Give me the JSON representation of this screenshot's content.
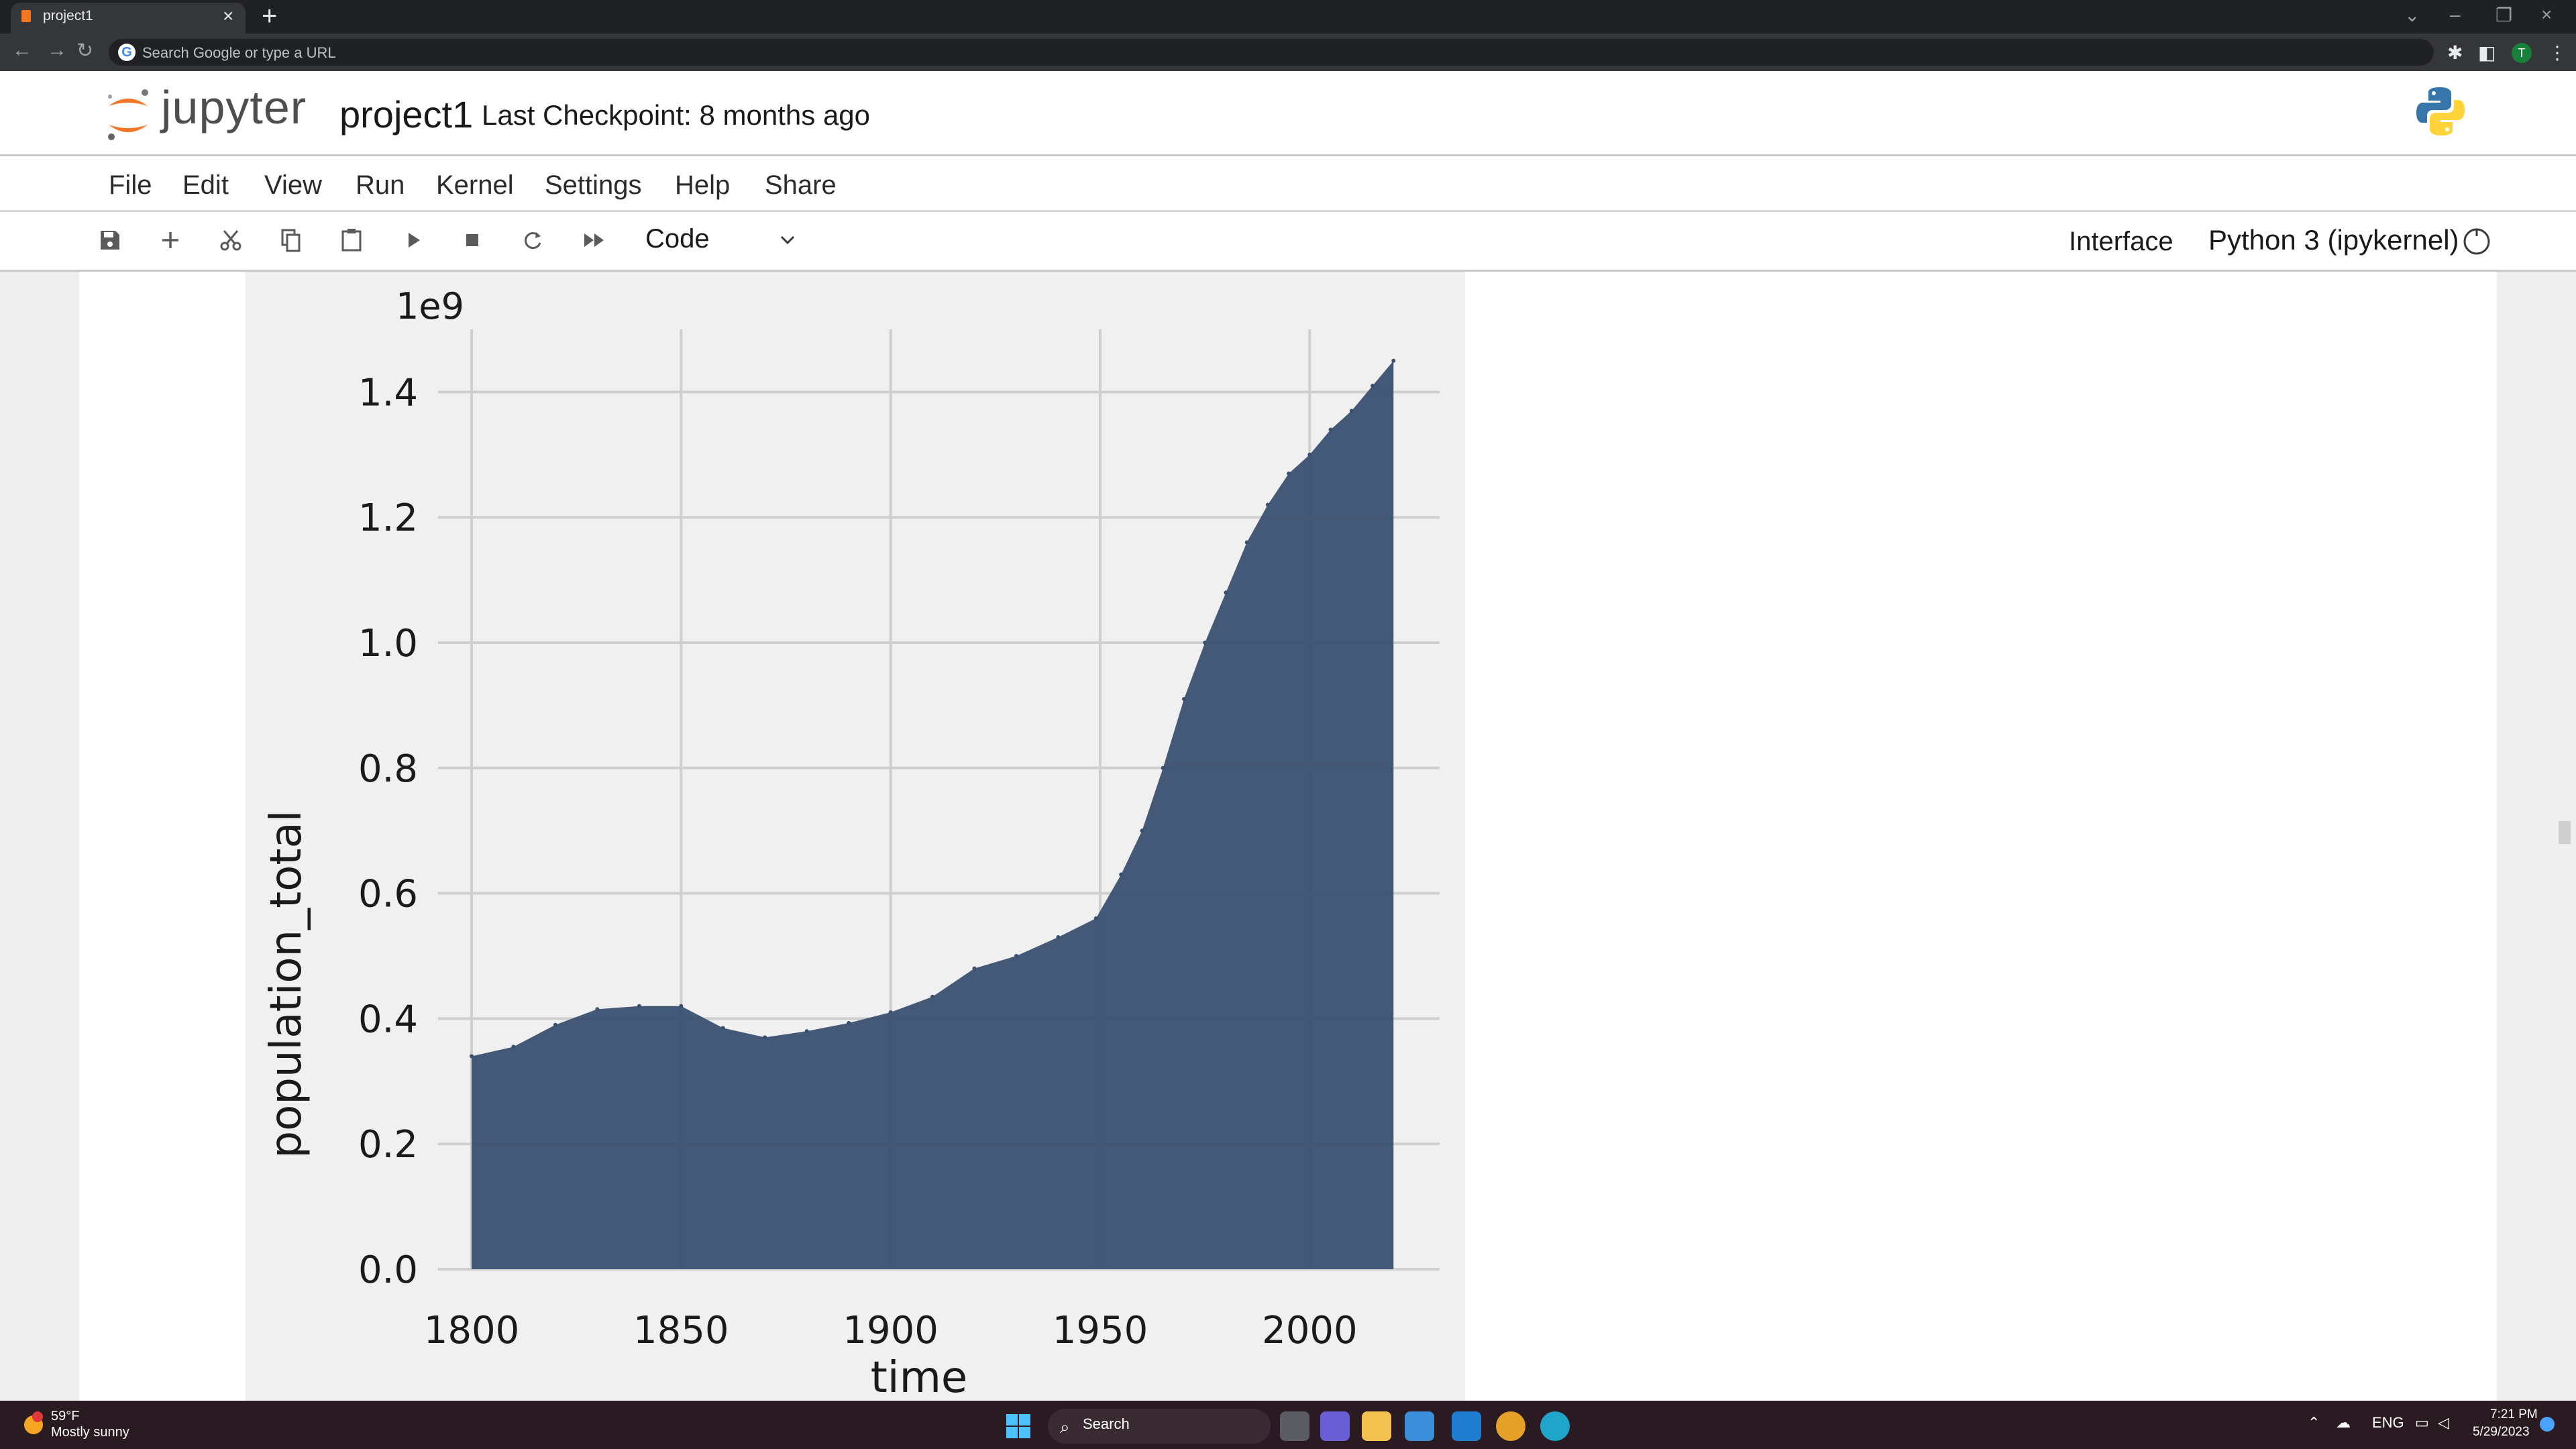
{
  "browser": {
    "tab_title": "project1",
    "omnibox_placeholder": "Search Google or type a URL",
    "profile_initial": "T"
  },
  "jupyter": {
    "logo_text": "jupyter",
    "notebook_title": "project1",
    "checkpoint": "Last Checkpoint: 8 months ago",
    "menu": [
      "File",
      "Edit",
      "View",
      "Run",
      "Kernel",
      "Settings",
      "Help",
      "Share"
    ],
    "toolbar": {
      "icons": [
        "save-icon",
        "add-cell-icon",
        "cut-icon",
        "copy-icon",
        "paste-icon",
        "run-icon",
        "stop-icon",
        "restart-icon",
        "fast-forward-icon"
      ],
      "cell_type": "Code",
      "interface_label": "Interface",
      "kernel_name": "Python 3 (ipykernel)"
    }
  },
  "chart_data": {
    "type": "area",
    "xlabel": "time",
    "ylabel": "population_total",
    "offset_label": "1e9",
    "xlim": [
      1792,
      2031
    ],
    "ylim": [
      0,
      1.5
    ],
    "xticks": [
      1800,
      1850,
      1900,
      1950,
      2000
    ],
    "xtick_labels": [
      "1800",
      "1850",
      "1900",
      "1950",
      "2000"
    ],
    "yticks": [
      0.0,
      0.2,
      0.4,
      0.6,
      0.8,
      1.0,
      1.2,
      1.4
    ],
    "ytick_labels": [
      "0.0",
      "0.2",
      "0.4",
      "0.6",
      "0.8",
      "1.0",
      "1.2",
      "1.4"
    ],
    "grid": true,
    "series": [
      {
        "color": "#3a5070",
        "x": [
          1800,
          1810,
          1820,
          1830,
          1840,
          1850,
          1860,
          1870,
          1880,
          1890,
          1900,
          1910,
          1920,
          1930,
          1940,
          1949,
          1955,
          1960,
          1965,
          1970,
          1975,
          1980,
          1985,
          1990,
          1995,
          2000,
          2005,
          2010,
          2015,
          2020
        ],
        "y": [
          0.34,
          0.355,
          0.39,
          0.415,
          0.42,
          0.42,
          0.385,
          0.37,
          0.38,
          0.393,
          0.41,
          0.435,
          0.48,
          0.5,
          0.53,
          0.56,
          0.63,
          0.7,
          0.8,
          0.91,
          1.0,
          1.08,
          1.16,
          1.22,
          1.27,
          1.3,
          1.34,
          1.37,
          1.41,
          1.45
        ]
      }
    ]
  },
  "taskbar": {
    "weather_temp": "59°F",
    "weather_desc": "Mostly sunny",
    "search_label": "Search",
    "tray_lang": "ENG",
    "time": "7:21 PM",
    "date": "5/29/2023"
  }
}
